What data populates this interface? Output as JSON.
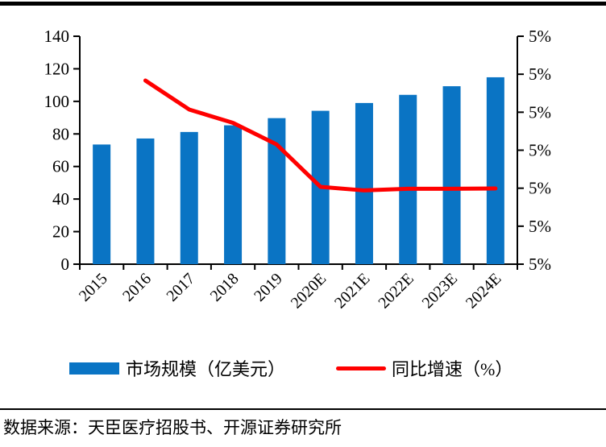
{
  "chart_data": {
    "type": "bar+line",
    "categories": [
      "2015",
      "2016",
      "2017",
      "2018",
      "2019",
      "2020E",
      "2021E",
      "2022E",
      "2023E",
      "2024E"
    ],
    "series": [
      {
        "name": "市场规模（亿美元）",
        "type": "bar",
        "color": "#0A74C4",
        "values": [
          73.5,
          77.2,
          81.2,
          85.3,
          89.7,
          94.2,
          99.0,
          104.0,
          109.3,
          114.8
        ]
      },
      {
        "name": "同比增速（%）",
        "type": "line",
        "color": "#FF0000",
        "x_start": "2016",
        "values_left_scale": [
          112.8,
          95.0,
          86.8,
          73.5,
          47.5,
          45.3,
          46.3,
          46.3,
          46.5
        ]
      }
    ],
    "left_axis": {
      "min": 0,
      "max": 140,
      "ticks": [
        "140",
        "120",
        "100",
        "80",
        "60",
        "40",
        "20",
        "0"
      ]
    },
    "right_axis": {
      "ticks": [
        "5%",
        "5%",
        "5%",
        "5%",
        "5%",
        "5%",
        "5%"
      ]
    },
    "axis_color": "#000000",
    "grid": "off",
    "legend_position": "bottom"
  },
  "legend": {
    "bar_label": "市场规模（亿美元）",
    "line_label": "同比增速（%）"
  },
  "source": {
    "text": "数据来源：天臣医疗招股书、开源证券研究所"
  }
}
